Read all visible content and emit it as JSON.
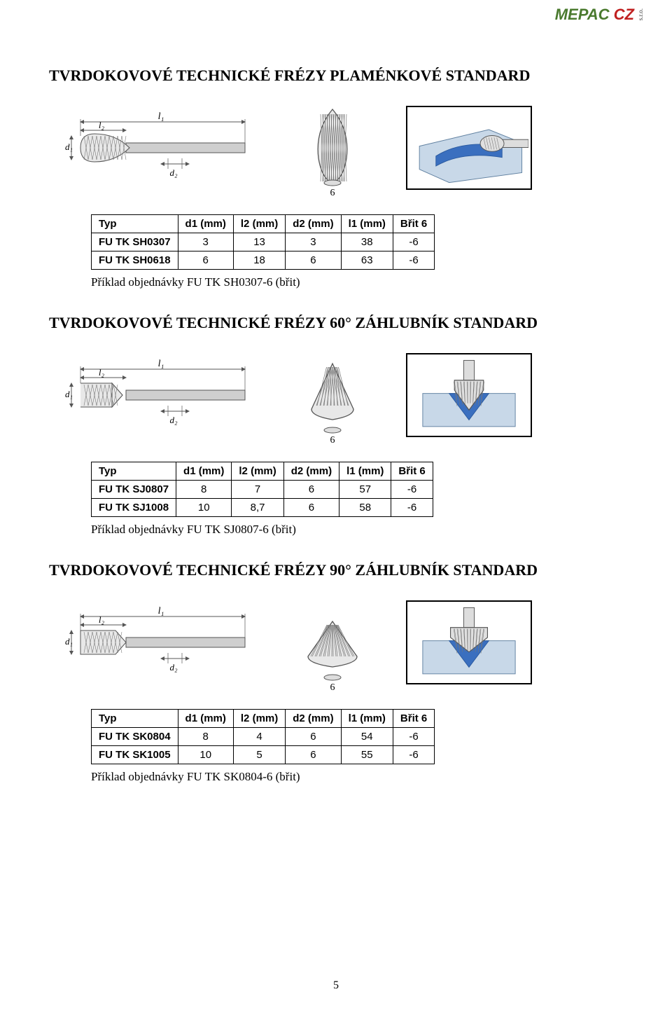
{
  "logo": {
    "m": "MEPAC",
    "cz": "CZ",
    "sro": "s.r.o."
  },
  "page_number": "5",
  "sections": [
    {
      "title": "TVRDOKOVOVÉ TECHNICKÉ FRÉZY PLAMÉNKOVÉ STANDARD",
      "shape": "flame",
      "table": {
        "headers": [
          "Typ",
          "d1 (mm)",
          "l2 (mm)",
          "d2 (mm)",
          "l1 (mm)",
          "Břit 6"
        ],
        "rows": [
          [
            "FU TK SH0307",
            "3",
            "13",
            "3",
            "38",
            "-6"
          ],
          [
            "FU TK SH0618",
            "6",
            "18",
            "6",
            "63",
            "-6"
          ]
        ]
      },
      "example": "Příklad objednávky FU TK SH0307-6 (břit)"
    },
    {
      "title": "TVRDOKOVOVÉ TECHNICKÉ FRÉZY 60° ZÁHLUBNÍK STANDARD",
      "shape": "cone60",
      "table": {
        "headers": [
          "Typ",
          "d1 (mm)",
          "l2 (mm)",
          "d2 (mm)",
          "l1 (mm)",
          "Břit 6"
        ],
        "rows": [
          [
            "FU TK SJ0807",
            "8",
            "7",
            "6",
            "57",
            "-6"
          ],
          [
            "FU TK SJ1008",
            "10",
            "8,7",
            "6",
            "58",
            "-6"
          ]
        ]
      },
      "example": "Příklad objednávky FU TK SJ0807-6 (břit)"
    },
    {
      "title": "TVRDOKOVOVÉ TECHNICKÉ FRÉZY 90° ZÁHLUBNÍK STANDARD",
      "shape": "cone90",
      "table": {
        "headers": [
          "Typ",
          "d1 (mm)",
          "l2 (mm)",
          "d2 (mm)",
          "l1 (mm)",
          "Břit 6"
        ],
        "rows": [
          [
            "FU TK SK0804",
            "8",
            "4",
            "6",
            "54",
            "-6"
          ],
          [
            "FU TK SK1005",
            "10",
            "5",
            "6",
            "55",
            "-6"
          ]
        ]
      },
      "example": "Příklad objednávky FU TK SK0804-6 (břit)"
    }
  ],
  "diagram_labels": {
    "l1": "l₁",
    "l2": "l₂",
    "d1": "d₁",
    "d2": "d₂",
    "six": "6"
  },
  "colors": {
    "line": "#555555",
    "hatch": "#777777",
    "shaft": "#cfcfcf",
    "block_fill": "#c8d8e8",
    "cut": "#3a6fbf",
    "border": "#000000"
  }
}
